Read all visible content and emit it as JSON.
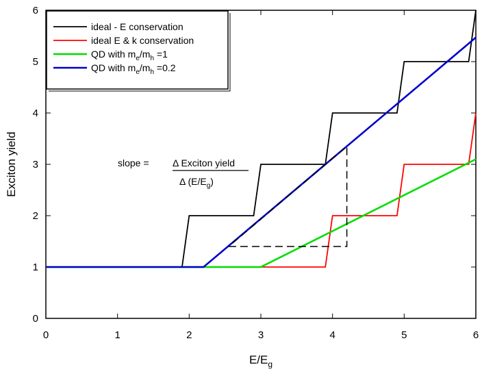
{
  "chart_data": {
    "type": "line",
    "xlabel": "E/E",
    "xlabel_sub": "g",
    "ylabel": "Exciton yield",
    "xlim": [
      0,
      6
    ],
    "ylim": [
      0,
      6
    ],
    "xticks": [
      "0",
      "1",
      "2",
      "3",
      "4",
      "5",
      "6"
    ],
    "yticks": [
      "0",
      "1",
      "2",
      "3",
      "4",
      "5",
      "6"
    ],
    "grid": false,
    "legend_position": "top-left",
    "series": [
      {
        "name": "ideal - E conservation",
        "color": "#000000",
        "x": [
          0,
          1.9,
          2.0,
          2.9,
          3.0,
          3.9,
          4.0,
          4.9,
          5.0,
          5.9,
          6.0
        ],
        "y": [
          1,
          1,
          2,
          2,
          3,
          3,
          4,
          4,
          5,
          5,
          6
        ]
      },
      {
        "name": "ideal E & k conservation",
        "color": "#ff0000",
        "x": [
          0,
          3.9,
          4.0,
          4.9,
          5.0,
          5.9,
          6.0
        ],
        "y": [
          1,
          1,
          2,
          2,
          3,
          3,
          4
        ]
      },
      {
        "name": "QD with m_e/m_h =1",
        "color": "#00dd00",
        "x": [
          0,
          3.0,
          6.0
        ],
        "y": [
          1,
          1,
          3.1
        ]
      },
      {
        "name": "QD with m_e/m_h =0.2",
        "color": "#0000cc",
        "x": [
          0,
          2.2,
          6.0
        ],
        "y": [
          1,
          1,
          5.47
        ]
      }
    ],
    "legend": [
      {
        "main": "ideal - E conservation",
        "sub1": "",
        "mid": "",
        "sub2": "",
        "tail": ""
      },
      {
        "main": "ideal E & k conservation",
        "sub1": "",
        "mid": "",
        "sub2": "",
        "tail": ""
      },
      {
        "main": "QD with m",
        "sub1": "e",
        "mid": "/m",
        "sub2": "h",
        "tail": " =1"
      },
      {
        "main": "QD with m",
        "sub1": "e",
        "mid": "/m",
        "sub2": "h",
        "tail": " =0.2"
      }
    ],
    "annotation": {
      "prefix": "slope = ",
      "numerator": "Δ Exciton yield",
      "denominator": "Δ (E/E",
      "denominator_sub": "g",
      "denominator_tail": ")",
      "triangle": {
        "x": [
          2.55,
          4.2,
          4.2,
          2.55
        ],
        "y": [
          1.4,
          1.4,
          3.35,
          1.4
        ]
      }
    }
  }
}
